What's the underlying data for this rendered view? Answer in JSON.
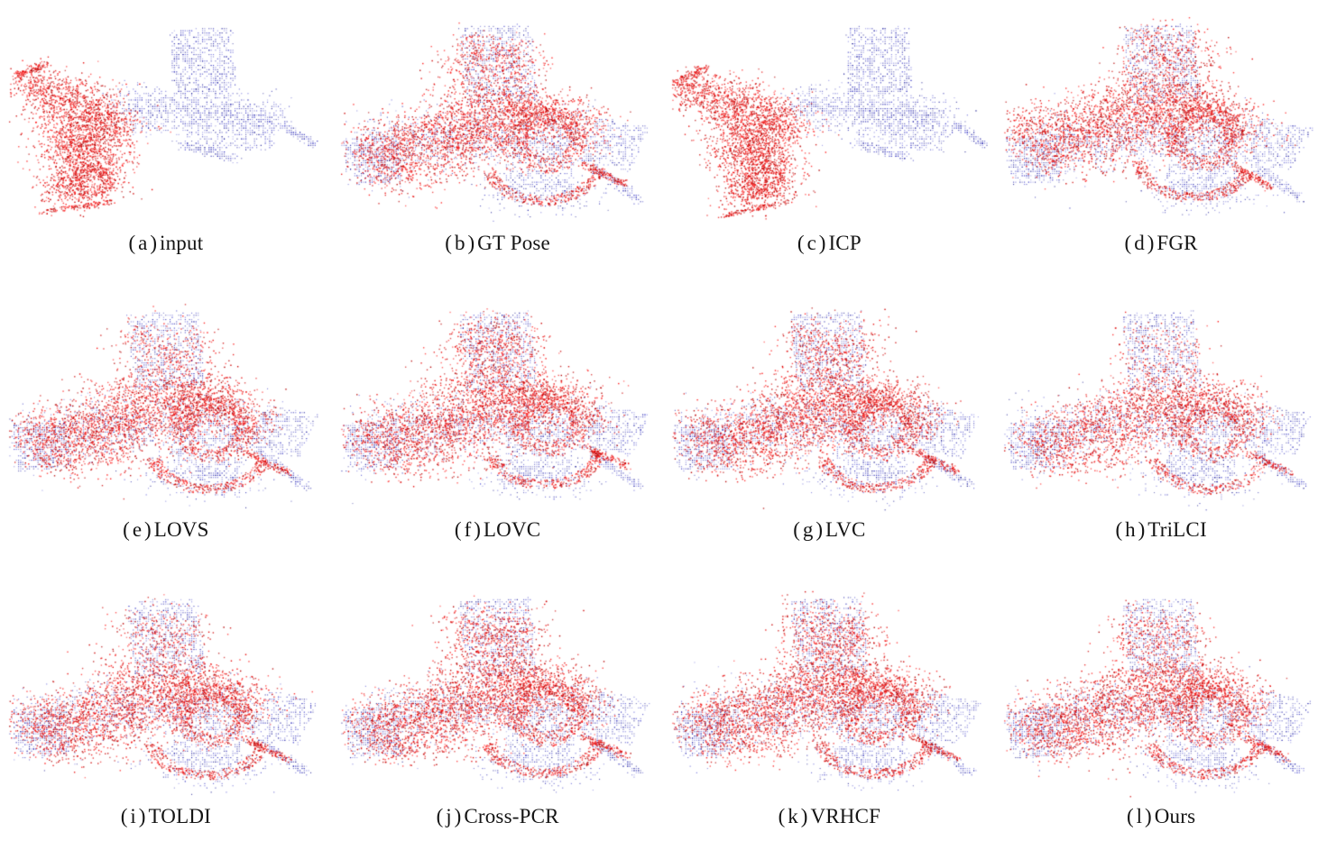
{
  "figure": {
    "description": "Qualitative comparison of point cloud registration methods on an outdoor scene; red = source cloud, blue = target cloud",
    "colors": {
      "background": "#ffffff",
      "red": "#e60000",
      "blue": "#3232b4",
      "red_shades": [
        "#e60000",
        "#ff1414",
        "#cc0000",
        "#ff4040",
        "#b40000"
      ],
      "blue_shades": [
        "#2626aa",
        "#3d3dc4",
        "#5b5bd6",
        "#1b1b8f",
        "#7070d8"
      ]
    },
    "panels": [
      {
        "id": "a",
        "caption_letter": "(a)",
        "caption_name": "input",
        "variant": "separated",
        "seed": 101,
        "red": {
          "dx": 0,
          "dy": 0,
          "rot": 0
        },
        "top_factor": 0,
        "red_density": 1
      },
      {
        "id": "b",
        "caption_letter": "(b)",
        "caption_name": "GT Pose",
        "variant": "aligned",
        "seed": 202,
        "red": {
          "dx": 0,
          "dy": 0,
          "rot": 0
        },
        "top_factor": 0.9,
        "red_density": 1.0
      },
      {
        "id": "c",
        "caption_letter": "(c)",
        "caption_name": "ICP",
        "variant": "separated",
        "seed": 303,
        "red": {
          "dx": 0.02,
          "dy": -0.02,
          "rot": -0.1
        },
        "blue": {
          "dx": 0.03,
          "dy": -0.01,
          "rot": 0.03
        },
        "top_factor": 0,
        "red_density": 1
      },
      {
        "id": "d",
        "caption_letter": "(d)",
        "caption_name": "FGR",
        "variant": "aligned",
        "seed": 404,
        "red": {
          "dx": -0.02,
          "dy": -0.035,
          "rot": 0.15
        },
        "top_factor": 0.75,
        "red_density": 1
      },
      {
        "id": "e",
        "caption_letter": "(e)",
        "caption_name": "LOVS",
        "variant": "aligned",
        "seed": 505,
        "red": {
          "dx": -0.005,
          "dy": 0.005,
          "rot": 0.03
        },
        "top_factor": 0.55,
        "red_density": 1
      },
      {
        "id": "f",
        "caption_letter": "(f)",
        "caption_name": "LOVC",
        "variant": "aligned",
        "seed": 606,
        "red": {
          "dx": 0.005,
          "dy": -0.01,
          "rot": -0.02
        },
        "top_factor": 0.95,
        "red_density": 1
      },
      {
        "id": "g",
        "caption_letter": "(g)",
        "caption_name": "LVC",
        "variant": "aligned",
        "seed": 707,
        "red": {
          "dx": 0.01,
          "dy": 0,
          "rot": 0.02
        },
        "top_factor": 0.85,
        "red_density": 1
      },
      {
        "id": "h",
        "caption_letter": "(h)",
        "caption_name": "TriLCI",
        "variant": "aligned",
        "seed": 808,
        "red": {
          "dx": 0.01,
          "dy": 0.01,
          "rot": 0
        },
        "top_factor": 0.45,
        "red_density": 0.78
      },
      {
        "id": "i",
        "caption_letter": "(i)",
        "caption_name": "TOLDI",
        "variant": "aligned",
        "seed": 909,
        "red": {
          "dx": -0.01,
          "dy": 0.005,
          "rot": 0.02
        },
        "top_factor": 0.6,
        "red_density": 0.95
      },
      {
        "id": "j",
        "caption_letter": "(j)",
        "caption_name": "Cross-PCR",
        "variant": "aligned",
        "seed": 1010,
        "red": {
          "dx": 0,
          "dy": 0,
          "rot": -0.02
        },
        "top_factor": 1.0,
        "red_density": 1.0
      },
      {
        "id": "k",
        "caption_letter": "(k)",
        "caption_name": "VRHCF",
        "variant": "aligned",
        "seed": 1111,
        "red": {
          "dx": 0.005,
          "dy": -0.005,
          "rot": 0.03
        },
        "top_factor": 1.0,
        "red_density": 1.0
      },
      {
        "id": "l",
        "caption_letter": "(l)",
        "caption_name": "Ours",
        "variant": "aligned",
        "seed": 1212,
        "red": {
          "dx": 0,
          "dy": 0,
          "rot": 0.01
        },
        "top_factor": 0.7,
        "red_density": 0.95
      }
    ]
  }
}
